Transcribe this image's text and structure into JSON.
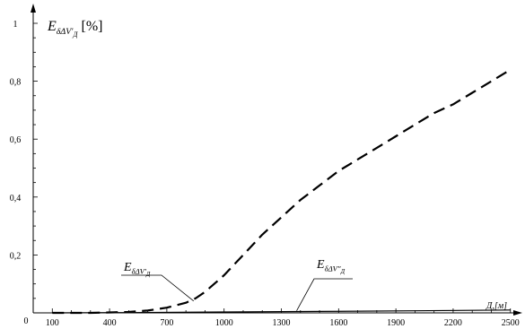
{
  "chart_data": {
    "type": "line",
    "ylabel": {
      "main": "E",
      "sub": "δΔV′",
      "subsub": "Д",
      "unit": "[%]"
    },
    "xlabel": "Д,[м]",
    "xlim": [
      0,
      2520
    ],
    "ylim": [
      0,
      1.05
    ],
    "x_ticks": [
      100,
      400,
      700,
      1000,
      1300,
      1600,
      1900,
      2200,
      2500
    ],
    "x_origin_label": "0",
    "y_ticks": [
      {
        "value": 0.2,
        "label": "0,2"
      },
      {
        "value": 0.4,
        "label": "0,4"
      },
      {
        "value": 0.6,
        "label": "0,6"
      },
      {
        "value": 0.8,
        "label": "0,8"
      },
      {
        "value": 1.0,
        "label": "1"
      }
    ],
    "series": [
      {
        "style": "dashed",
        "color": "#000000",
        "x": [
          100,
          300,
          500,
          600,
          700,
          800,
          850,
          900,
          1000,
          1100,
          1200,
          1300,
          1400,
          1500,
          1600,
          1700,
          1800,
          1900,
          2000,
          2100,
          2200,
          2300,
          2400,
          2500
        ],
        "y": [
          0.0,
          0.0,
          0.003,
          0.008,
          0.018,
          0.035,
          0.05,
          0.072,
          0.13,
          0.2,
          0.27,
          0.33,
          0.39,
          0.44,
          0.49,
          0.53,
          0.57,
          0.61,
          0.65,
          0.69,
          0.72,
          0.76,
          0.8,
          0.84
        ]
      },
      {
        "style": "solid",
        "color": "#000000",
        "x": [
          100,
          500,
          1000,
          1500,
          2000,
          2500
        ],
        "y": [
          0.0,
          0.001,
          0.003,
          0.005,
          0.007,
          0.01
        ]
      }
    ],
    "annotations": [
      {
        "main": "E",
        "sub": "δΔV′",
        "subsub": "Д",
        "points_to": {
          "x": 850,
          "y": 0.05
        }
      },
      {
        "main": "E",
        "sub": "δΔV″",
        "subsub": "Д",
        "points_to": {
          "x": 1380,
          "y": 0.004
        }
      }
    ]
  }
}
